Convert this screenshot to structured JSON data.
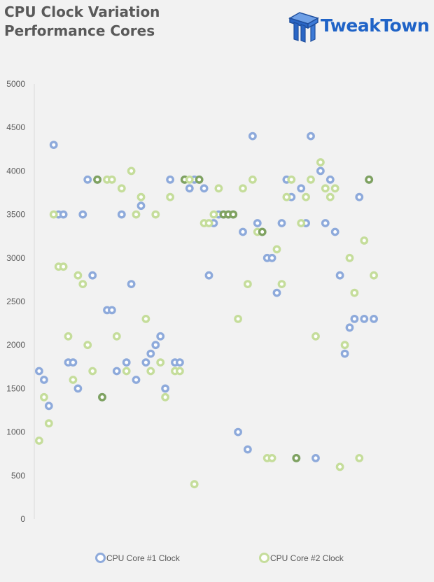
{
  "header": {
    "title_line1": "CPU Clock Variation",
    "title_line2": "Performance Cores",
    "logo_text": "TweakTown"
  },
  "chart_data": {
    "type": "scatter",
    "title": "CPU Clock Variation Performance Cores",
    "xlabel": "",
    "ylabel": "",
    "ylim": [
      0,
      5000
    ],
    "xlim": [
      0,
      72
    ],
    "yticks": [
      0,
      500,
      1000,
      1500,
      2000,
      2500,
      3000,
      3500,
      4000,
      4500,
      5000
    ],
    "grid": false,
    "legend_position": "bottom",
    "colors": {
      "core1": "#8eaadb",
      "core2": "#c5dd9b",
      "overlap": "#7fa260"
    },
    "series": [
      {
        "name": "CPU Core #1 Clock",
        "x": [
          1,
          2,
          3,
          4,
          5,
          6,
          7,
          8,
          9,
          10,
          11,
          12,
          13,
          14,
          15,
          16,
          17,
          18,
          19,
          20,
          21,
          22,
          23,
          24,
          25,
          26,
          27,
          28,
          29,
          30,
          31,
          32,
          33,
          34,
          35,
          36,
          37,
          38,
          39,
          40,
          41,
          42,
          43,
          44,
          45,
          46,
          47,
          48,
          49,
          50,
          51,
          52,
          53,
          54,
          55,
          56,
          57,
          58,
          59,
          60,
          61,
          62,
          63,
          64,
          65,
          66,
          67,
          68,
          69,
          70
        ],
        "y": [
          1700,
          1600,
          1300,
          4300,
          3500,
          3500,
          1800,
          1800,
          1500,
          3500,
          3900,
          2800,
          3900,
          1400,
          2400,
          2400,
          1700,
          3500,
          1800,
          2700,
          1600,
          3600,
          1800,
          1900,
          2000,
          2100,
          1500,
          3900,
          1800,
          1800,
          3900,
          3800,
          3900,
          3900,
          3800,
          2800,
          3400,
          3500,
          3500,
          3500,
          3500,
          1000,
          3300,
          800,
          4400,
          3400,
          3300,
          3000,
          3000,
          2600,
          3400,
          3900,
          3700,
          700,
          3800,
          3400,
          4400,
          700,
          4000,
          3400,
          3900,
          3300,
          2800,
          1900,
          2200,
          2300,
          3700,
          2300,
          3900,
          2300
        ]
      },
      {
        "name": "CPU Core #2 Clock",
        "x": [
          1,
          2,
          3,
          4,
          5,
          6,
          7,
          8,
          9,
          10,
          11,
          12,
          13,
          14,
          15,
          16,
          17,
          18,
          19,
          20,
          21,
          22,
          23,
          24,
          25,
          26,
          27,
          28,
          29,
          30,
          31,
          32,
          33,
          34,
          35,
          36,
          37,
          38,
          39,
          40,
          41,
          42,
          43,
          44,
          45,
          46,
          47,
          48,
          49,
          50,
          51,
          52,
          53,
          54,
          55,
          56,
          57,
          58,
          59,
          60,
          61,
          62,
          63,
          64,
          65,
          66,
          67,
          68,
          69,
          70
        ],
        "y": [
          900,
          1400,
          1100,
          3500,
          2900,
          2900,
          2100,
          1600,
          2800,
          2700,
          2000,
          1700,
          3900,
          1400,
          3900,
          3900,
          2100,
          3800,
          1700,
          4000,
          3500,
          3700,
          2300,
          1700,
          3500,
          1800,
          1400,
          3700,
          1700,
          1700,
          3900,
          3900,
          400,
          3900,
          3400,
          3400,
          3500,
          3800,
          3500,
          3500,
          3500,
          2300,
          3800,
          2700,
          3900,
          3300,
          3300,
          700,
          700,
          3100,
          2700,
          3700,
          3900,
          700,
          3400,
          3700,
          3900,
          2100,
          4100,
          3800,
          3700,
          3800,
          600,
          2000,
          3000,
          2600,
          700,
          3200,
          3900,
          2800
        ]
      }
    ]
  },
  "legend": {
    "series1_label": "CPU Core #1 Clock",
    "series2_label": "CPU Core #2 Clock"
  }
}
